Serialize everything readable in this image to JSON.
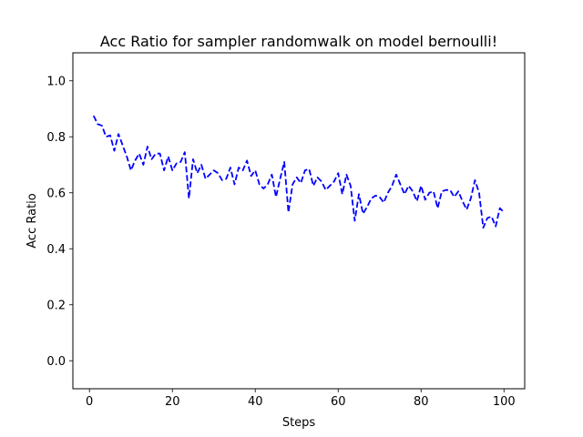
{
  "chart_data": {
    "type": "line",
    "title": "Acc Ratio for sampler randomwalk on model bernoulli!",
    "xlabel": "Steps",
    "ylabel": "Acc Ratio",
    "xlim": [
      -4,
      105
    ],
    "ylim": [
      -0.1,
      1.1
    ],
    "xticks": [
      0,
      20,
      40,
      60,
      80,
      100
    ],
    "yticks": [
      0.0,
      0.2,
      0.4,
      0.6,
      0.8,
      1.0
    ],
    "xtick_labels": [
      "0",
      "20",
      "40",
      "60",
      "80",
      "100"
    ],
    "ytick_labels": [
      "0.0",
      "0.2",
      "0.4",
      "0.6",
      "0.8",
      "1.0"
    ],
    "grid": false,
    "series": [
      {
        "color": "#0000ff",
        "line_style": "dashed",
        "x": [
          1,
          2,
          3,
          4,
          5,
          6,
          7,
          8,
          9,
          10,
          11,
          12,
          13,
          14,
          15,
          16,
          17,
          18,
          19,
          20,
          21,
          22,
          23,
          24,
          25,
          26,
          27,
          28,
          29,
          30,
          31,
          32,
          33,
          34,
          35,
          36,
          37,
          38,
          39,
          40,
          41,
          42,
          43,
          44,
          45,
          46,
          47,
          48,
          49,
          50,
          51,
          52,
          53,
          54,
          55,
          56,
          57,
          58,
          59,
          60,
          61,
          62,
          63,
          64,
          65,
          66,
          67,
          68,
          69,
          70,
          71,
          72,
          73,
          74,
          75,
          76,
          77,
          78,
          79,
          80,
          81,
          82,
          83,
          84,
          85,
          86,
          87,
          88,
          89,
          90,
          91,
          92,
          93,
          94,
          95,
          96,
          97,
          98,
          99,
          100
        ],
        "y": [
          0.875,
          0.845,
          0.84,
          0.8,
          0.805,
          0.75,
          0.81,
          0.77,
          0.73,
          0.68,
          0.715,
          0.74,
          0.7,
          0.765,
          0.72,
          0.74,
          0.74,
          0.68,
          0.73,
          0.68,
          0.705,
          0.71,
          0.745,
          0.58,
          0.72,
          0.67,
          0.7,
          0.65,
          0.665,
          0.68,
          0.67,
          0.645,
          0.65,
          0.69,
          0.63,
          0.69,
          0.68,
          0.715,
          0.66,
          0.68,
          0.63,
          0.615,
          0.63,
          0.665,
          0.585,
          0.65,
          0.71,
          0.53,
          0.63,
          0.655,
          0.635,
          0.68,
          0.685,
          0.625,
          0.655,
          0.64,
          0.61,
          0.625,
          0.64,
          0.67,
          0.595,
          0.665,
          0.625,
          0.5,
          0.595,
          0.525,
          0.55,
          0.58,
          0.59,
          0.585,
          0.565,
          0.6,
          0.625,
          0.665,
          0.63,
          0.595,
          0.625,
          0.605,
          0.57,
          0.625,
          0.575,
          0.6,
          0.605,
          0.545,
          0.605,
          0.61,
          0.61,
          0.585,
          0.605,
          0.57,
          0.54,
          0.58,
          0.645,
          0.6,
          0.475,
          0.51,
          0.515,
          0.48,
          0.545,
          0.53
        ]
      }
    ]
  }
}
